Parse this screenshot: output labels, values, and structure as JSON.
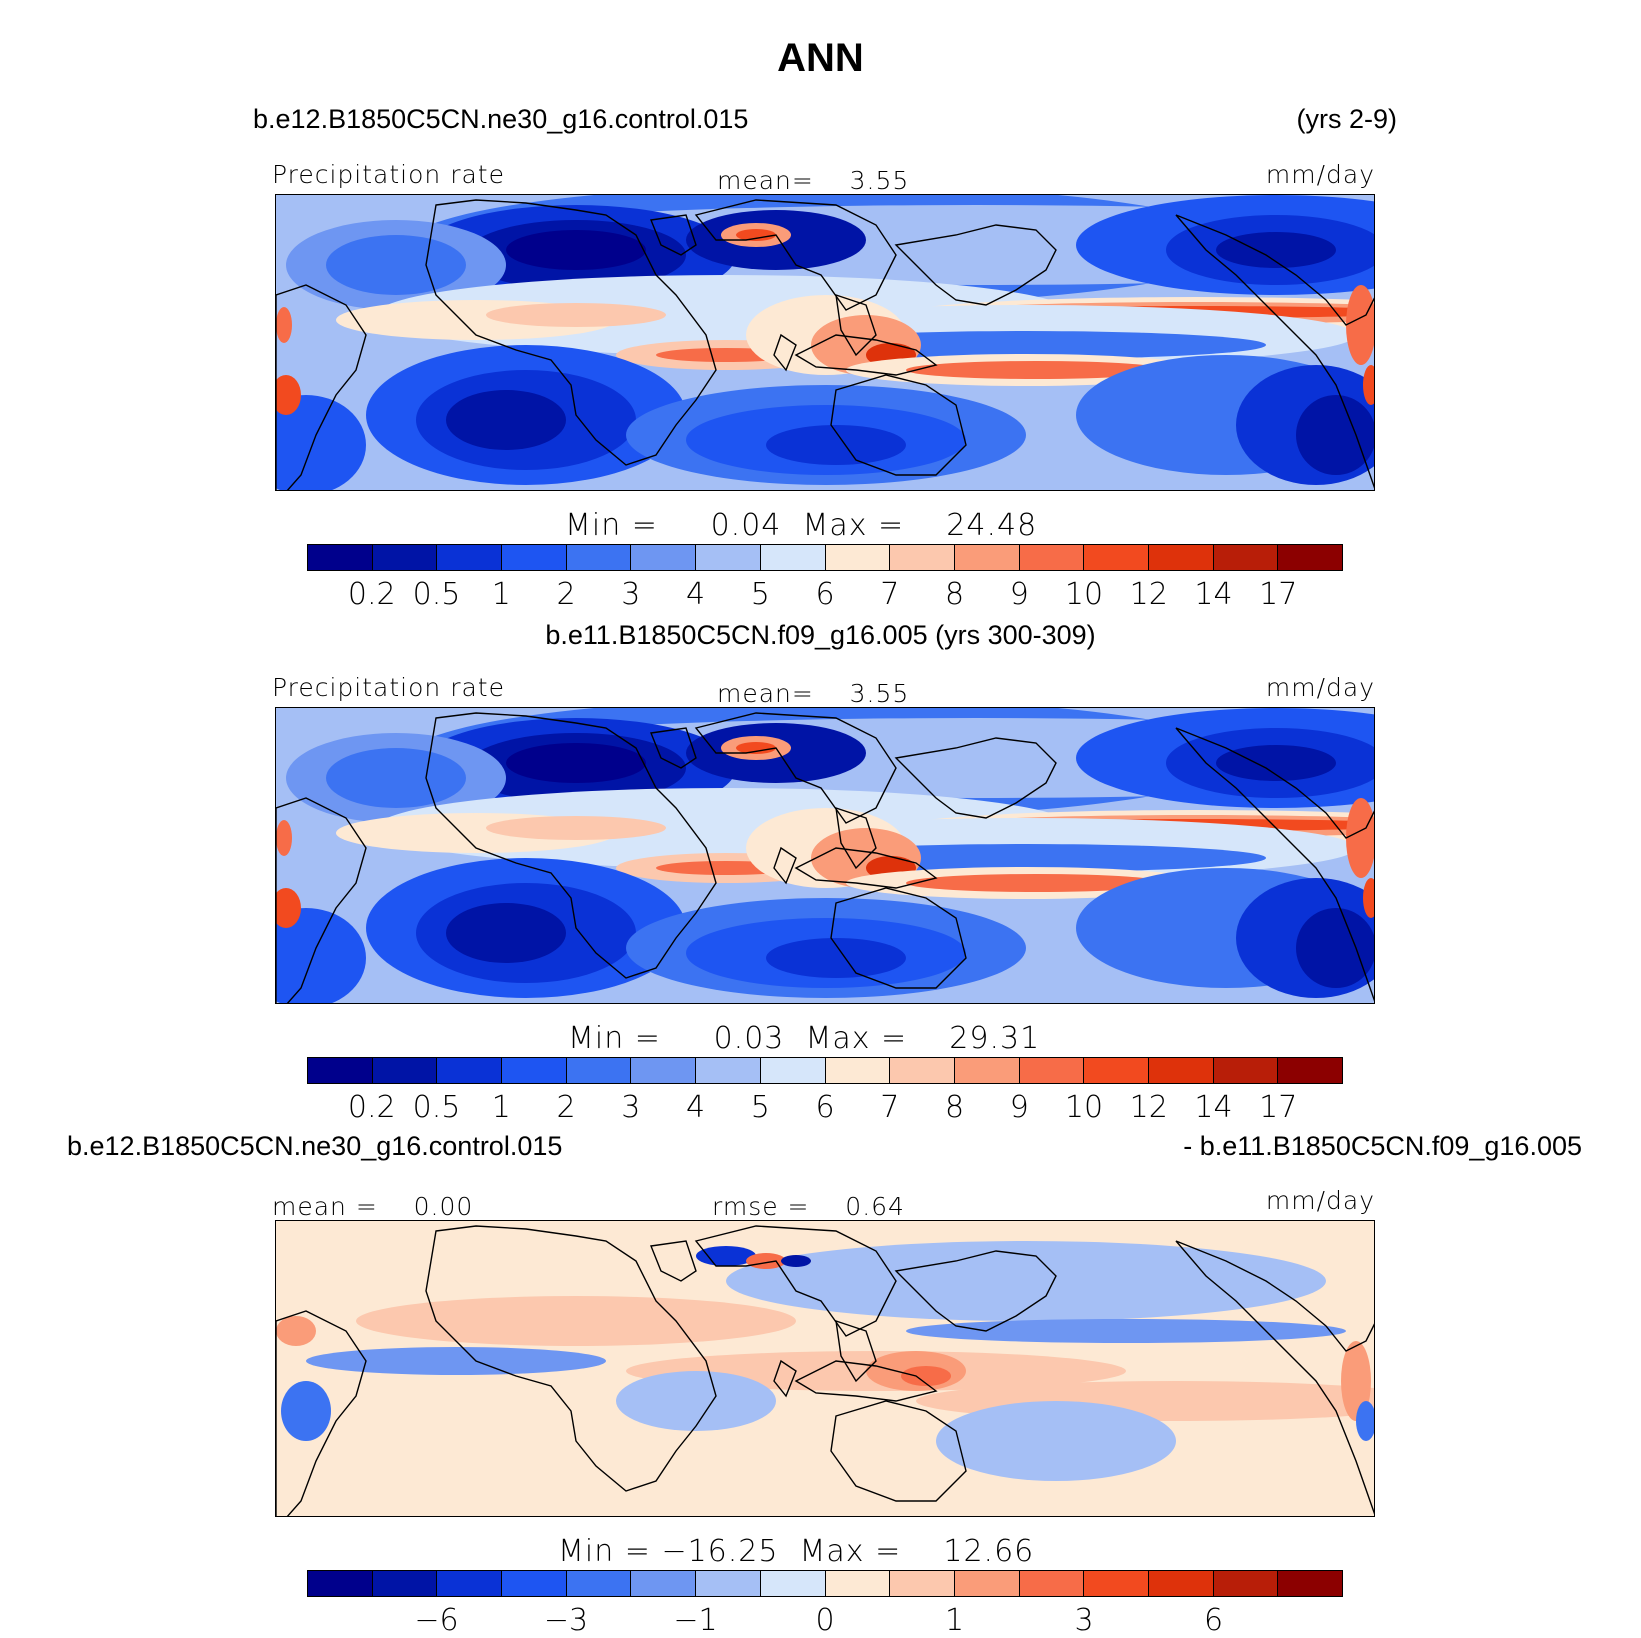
{
  "title": "ANN",
  "colors": [
    "#00008c",
    "#0014a6",
    "#0a32d6",
    "#1e55f2",
    "#3c73f2",
    "#6e96f2",
    "#a5bff5",
    "#d6e6fa",
    "#fde9d4",
    "#fcc8ae",
    "#fa9c79",
    "#f76c48",
    "#f24a1f",
    "#de320b",
    "#b81e08",
    "#8c0000"
  ],
  "panels": [
    {
      "case_left": "b.e12.B1850C5CN.ne30_g16.control.015",
      "case_right": "(yrs 2-9)",
      "label_left": "Precipitation rate",
      "label_mid_key": "mean=",
      "label_mid_val": "3.55",
      "units": "mm/day",
      "minmax": "Min =     0.04  Max =    24.48",
      "ticks": [
        "0.2",
        "0.5",
        "1",
        "2",
        "3",
        "4",
        "5",
        "6",
        "7",
        "8",
        "9",
        "10",
        "12",
        "14",
        "17"
      ]
    },
    {
      "case_center": "b.e11.B1850C5CN.f09_g16.005 (yrs 300-309)",
      "label_left": "Precipitation rate",
      "label_mid_key": "mean=",
      "label_mid_val": "3.55",
      "units": "mm/day",
      "minmax": "Min =     0.03  Max =    29.31",
      "ticks": [
        "0.2",
        "0.5",
        "1",
        "2",
        "3",
        "4",
        "5",
        "6",
        "7",
        "8",
        "9",
        "10",
        "12",
        "14",
        "17"
      ]
    },
    {
      "case_left": "b.e12.B1850C5CN.ne30_g16.control.015",
      "case_right": "- b.e11.B1850C5CN.f09_g16.005",
      "label_left_key": "mean =",
      "label_left_val": "0.00",
      "label_mid_key": "rmse =",
      "label_mid_val": "0.64",
      "units": "mm/day",
      "minmax": "Min = −16.25  Max =    12.66",
      "ticks": [
        "−6",
        "−3",
        "−1",
        "0",
        "1",
        "3",
        "6"
      ]
    }
  ],
  "chart_data": [
    {
      "type": "heatmap",
      "title": "Precipitation rate",
      "units": "mm/day",
      "mean": 3.55,
      "min": 0.04,
      "max": 24.48,
      "contour_levels": [
        0.2,
        0.5,
        1,
        2,
        3,
        4,
        5,
        6,
        7,
        8,
        9,
        10,
        12,
        14,
        17
      ],
      "period": "yrs 2-9"
    },
    {
      "type": "heatmap",
      "title": "Precipitation rate",
      "units": "mm/day",
      "mean": 3.55,
      "min": 0.03,
      "max": 29.31,
      "contour_levels": [
        0.2,
        0.5,
        1,
        2,
        3,
        4,
        5,
        6,
        7,
        8,
        9,
        10,
        12,
        14,
        17
      ],
      "period": "yrs 300-309"
    },
    {
      "type": "heatmap",
      "units": "mm/day",
      "mean": 0.0,
      "rmse": 0.64,
      "min": -16.25,
      "max": 12.66,
      "contour_levels": [
        -6,
        -3,
        -1,
        0,
        1,
        3,
        6
      ]
    }
  ]
}
